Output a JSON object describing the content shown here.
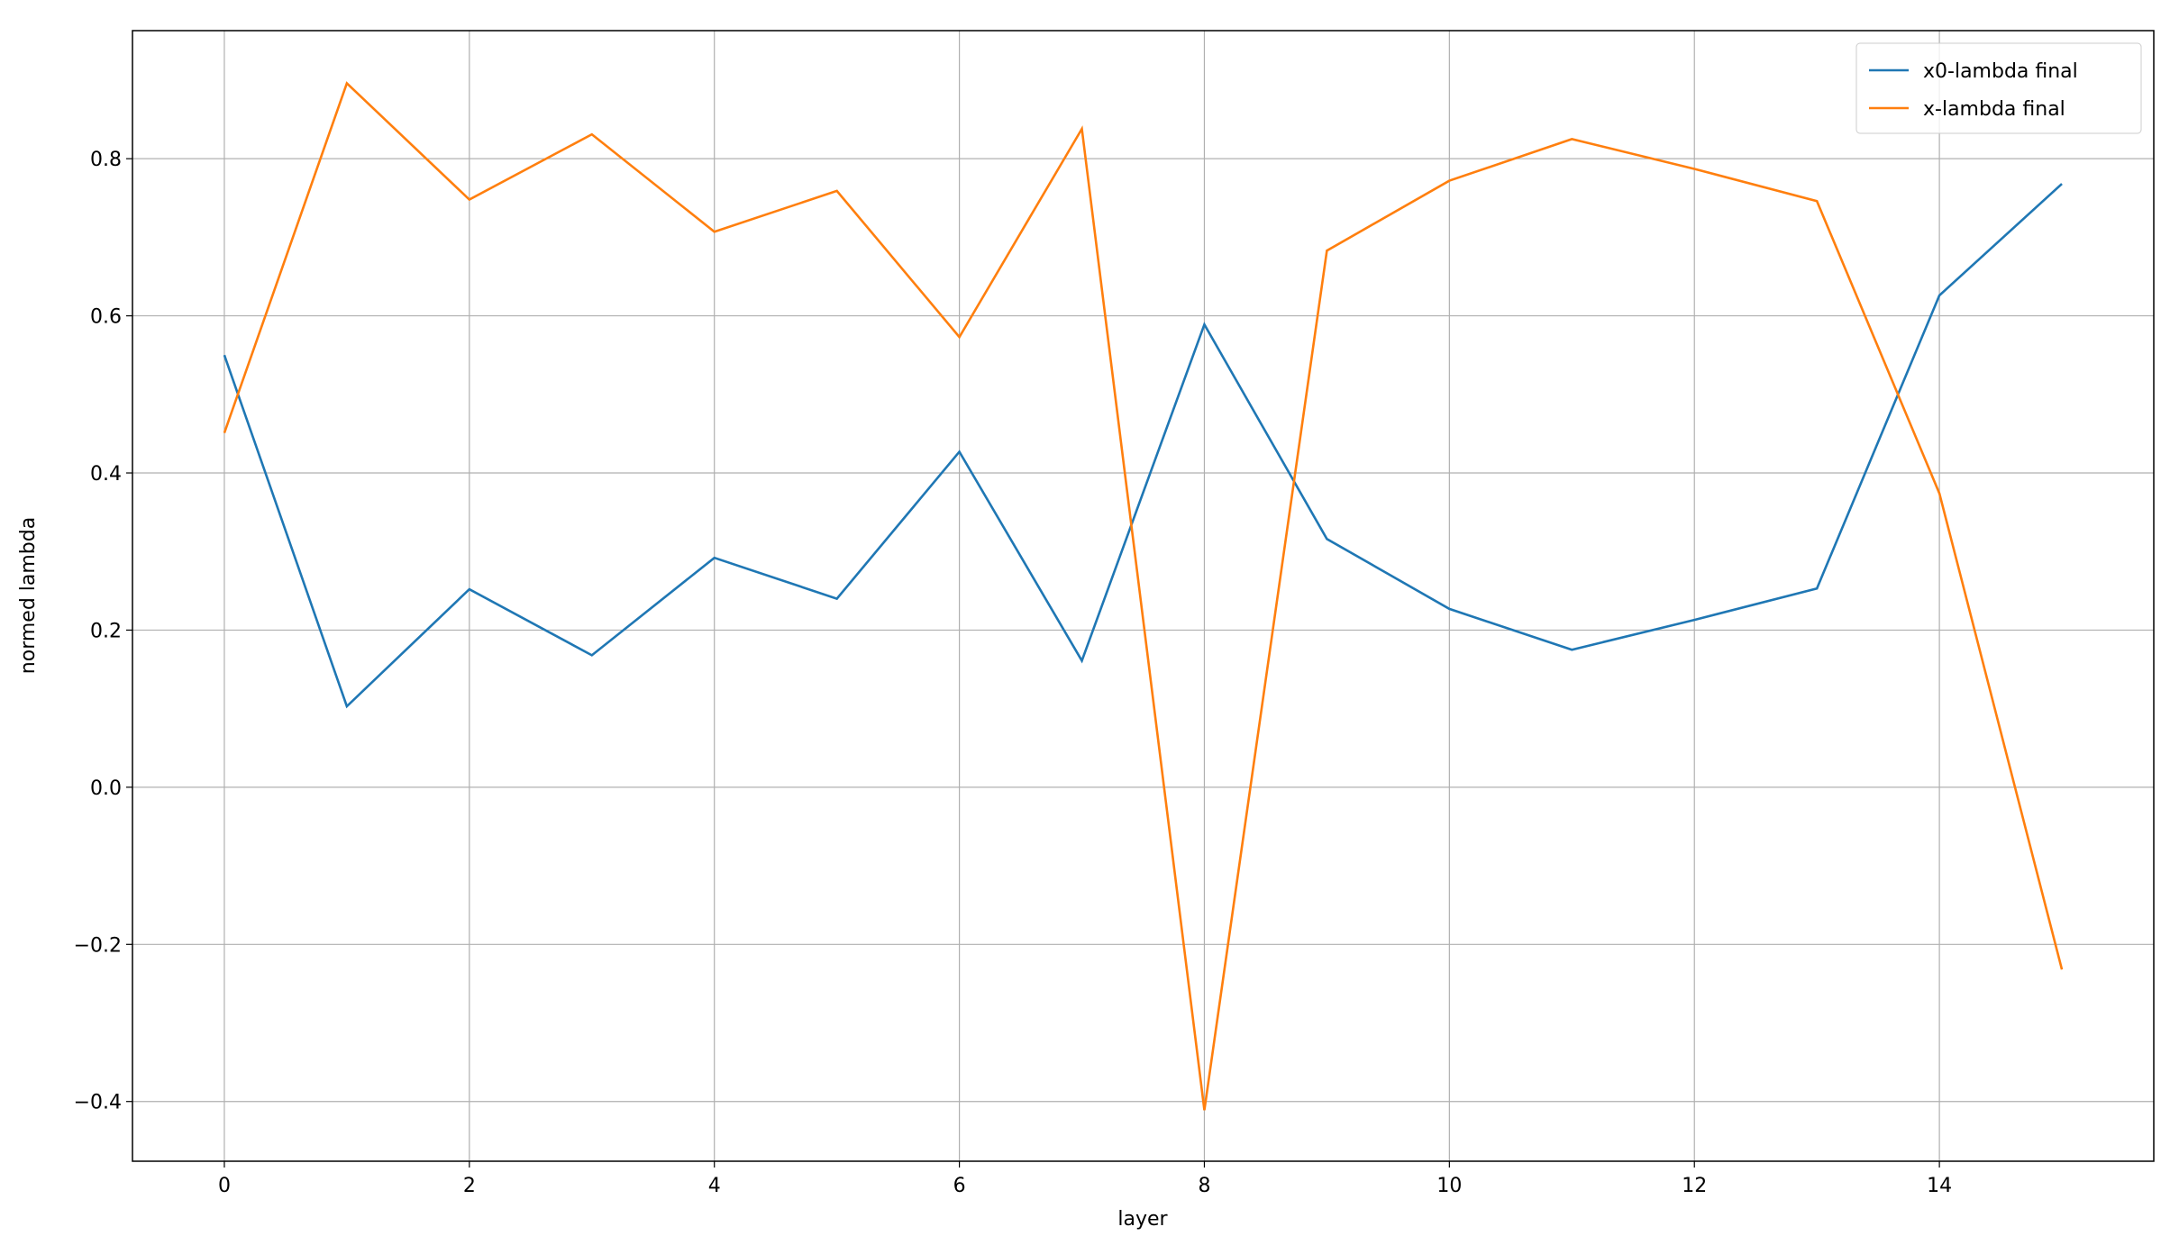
{
  "chart_data": {
    "type": "line",
    "x_label": "layer",
    "y_label": "normed lambda",
    "x": [
      0,
      1,
      2,
      3,
      4,
      5,
      6,
      7,
      8,
      9,
      10,
      11,
      12,
      13,
      14,
      15
    ],
    "series": [
      {
        "name": "x0-lambda final",
        "color": "#1f77b4",
        "values": [
          0.55,
          0.103,
          0.252,
          0.168,
          0.292,
          0.24,
          0.427,
          0.161,
          0.589,
          0.316,
          0.227,
          0.175,
          0.213,
          0.253,
          0.626,
          0.768
        ]
      },
      {
        "name": "x-lambda final",
        "color": "#ff7f0e",
        "values": [
          0.451,
          0.896,
          0.748,
          0.831,
          0.707,
          0.759,
          0.573,
          0.838,
          -0.411,
          0.683,
          0.772,
          0.825,
          0.787,
          0.746,
          0.374,
          -0.232
        ]
      }
    ],
    "xlim": [
      -0.75,
      15.75
    ],
    "xticks": [
      0,
      2,
      4,
      6,
      8,
      10,
      12,
      14
    ],
    "ylim": [
      -0.476,
      0.963
    ],
    "yticks": [
      {
        "value": -0.4,
        "label": "−0.4"
      },
      {
        "value": -0.2,
        "label": "−0.2"
      },
      {
        "value": 0,
        "label": "0.0"
      },
      0.2,
      0.4,
      0.6,
      0.8
    ],
    "grid": true,
    "legend": "upper right"
  }
}
